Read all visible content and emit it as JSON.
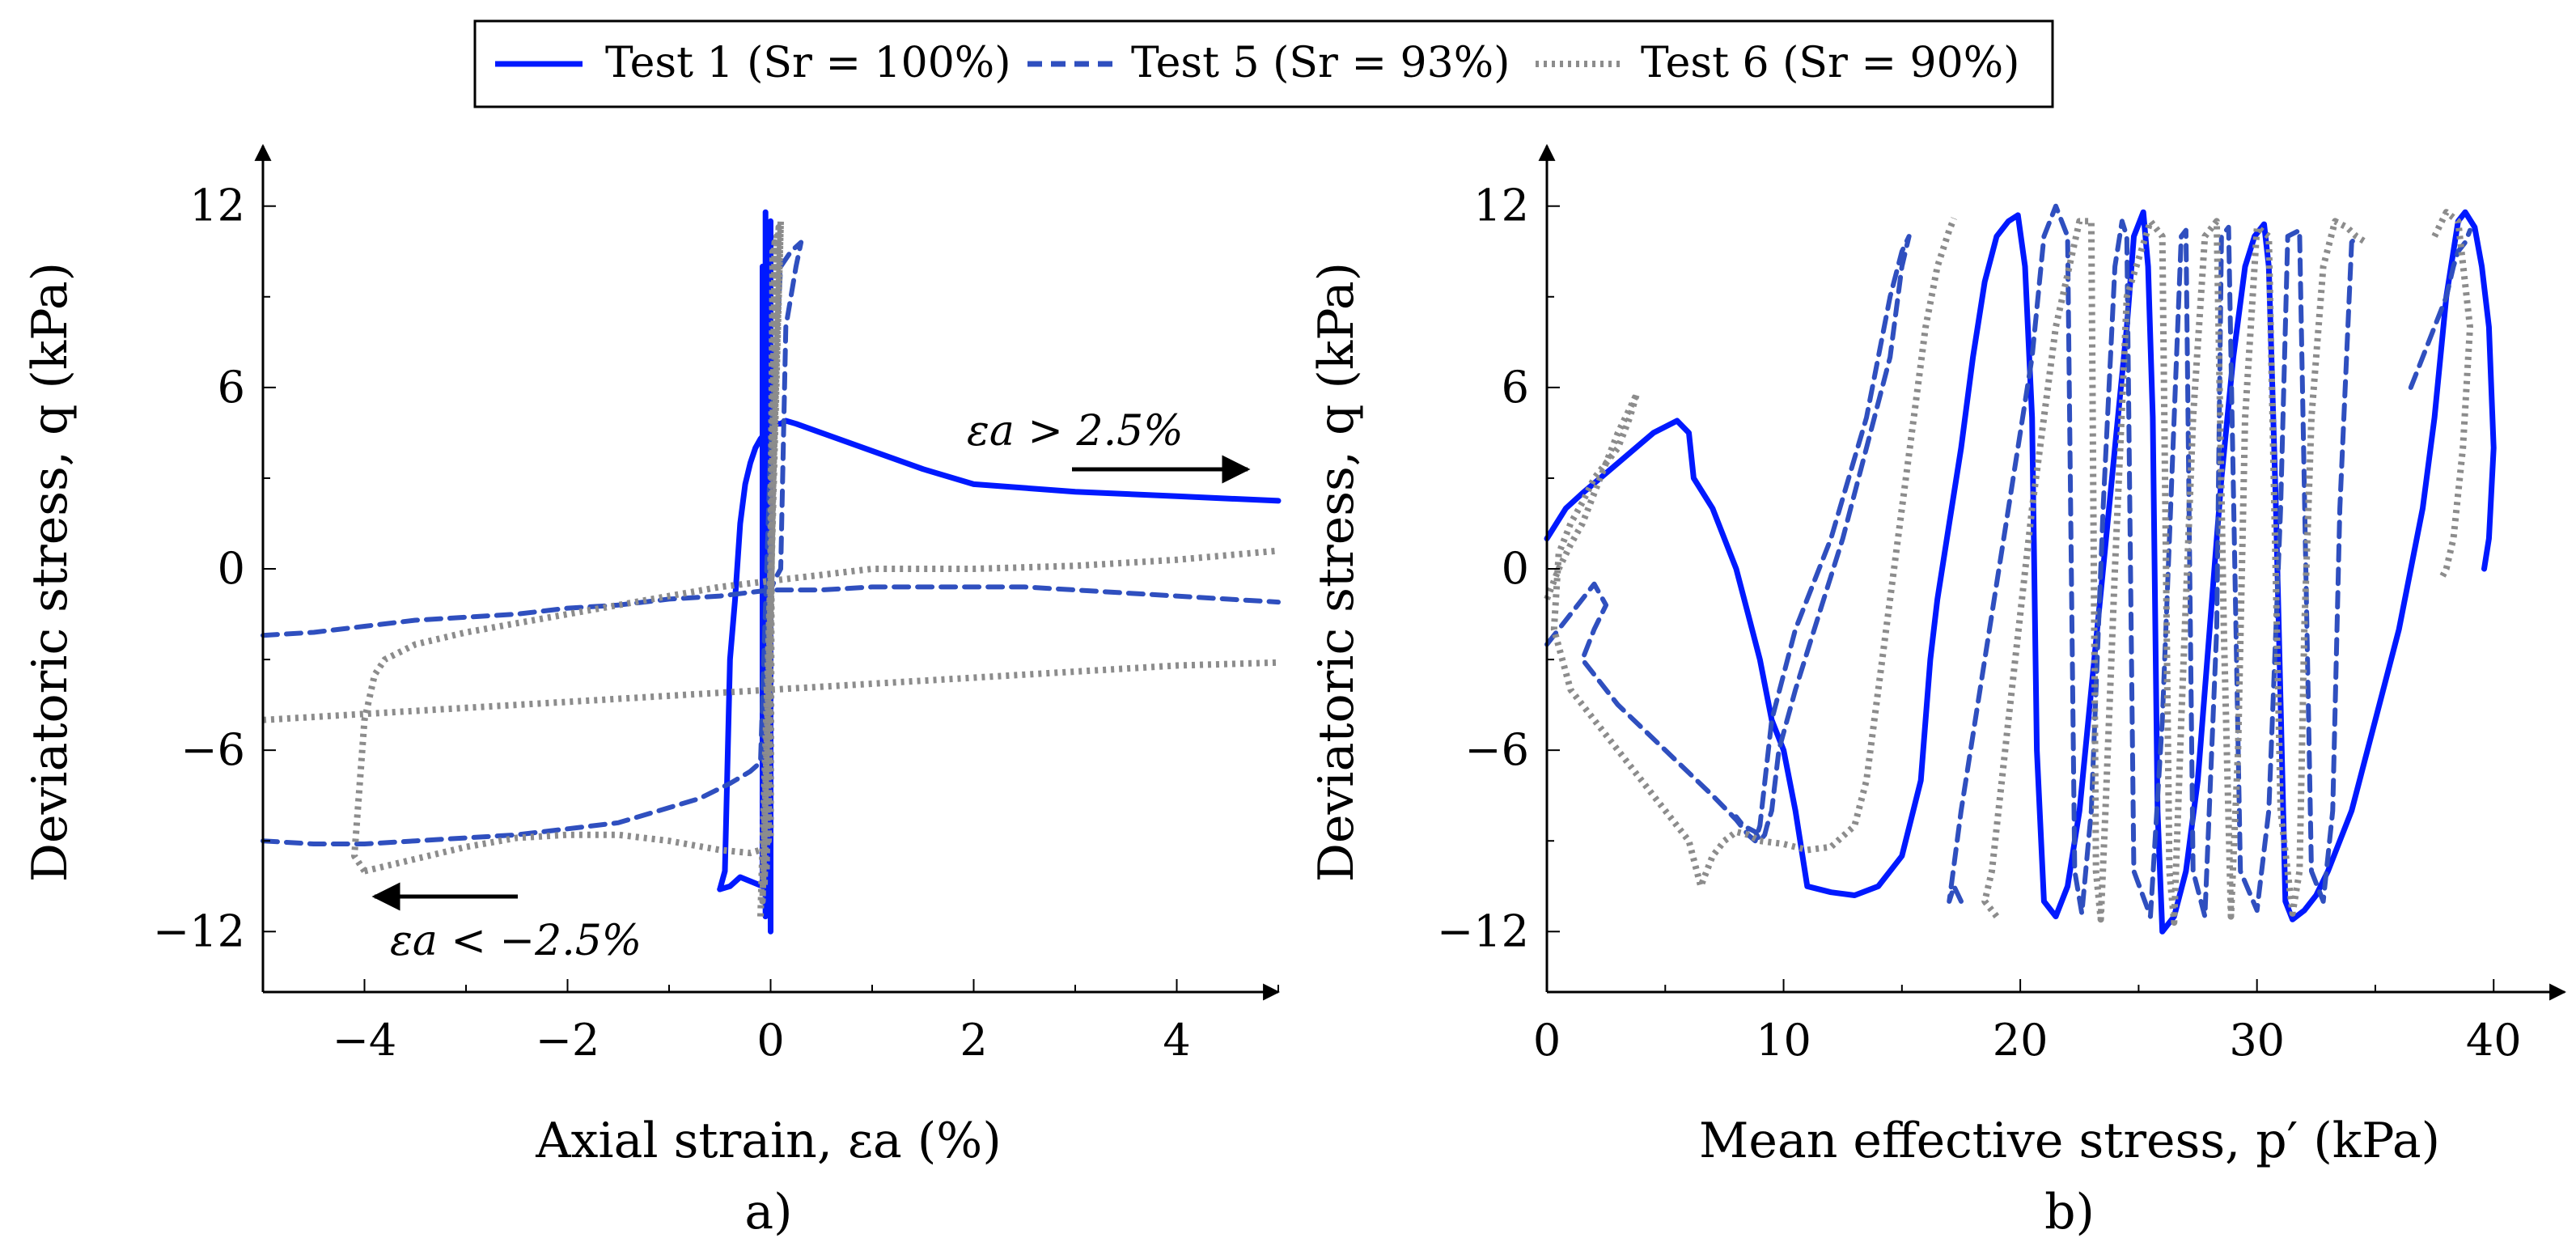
{
  "legend": {
    "entries": [
      {
        "key": "t1",
        "label": "Test 1 (Sr = 100%)",
        "color": "#0019ff",
        "dash": "solid"
      },
      {
        "key": "t5",
        "label": "Test 5 (Sr = 93%)",
        "color": "#2f4fbf",
        "dash": "dashed"
      },
      {
        "key": "t6",
        "label": "Test 6 (Sr = 90%)",
        "color": "#8c8c8c",
        "dash": "dotted"
      }
    ]
  },
  "chart_data": [
    {
      "panel": "a)",
      "type": "line",
      "xlabel": "Axial strain, εa (%)",
      "ylabel": "Deviatoric stress, q (kPa)",
      "xlim": [
        -5,
        5
      ],
      "ylim": [
        -14,
        14
      ],
      "xticks": [
        -4,
        -2,
        0,
        2,
        4
      ],
      "yticks": [
        -12,
        -6,
        0,
        6,
        12
      ],
      "annotations": [
        {
          "text": "εa > 2.5%",
          "arrow": "right"
        },
        {
          "text": "εa < −2.5%",
          "arrow": "left"
        }
      ],
      "series": [
        {
          "key": "t1",
          "x": [
            -0.5,
            -0.45,
            -0.4,
            -0.35,
            -0.3,
            -0.25,
            -0.2,
            -0.15,
            -0.1,
            -0.05,
            0,
            0.05,
            0.1,
            0.15,
            0.25,
            0.5,
            1,
            1.5,
            2,
            3,
            4,
            5
          ],
          "y": [
            -10.6,
            -10,
            -3,
            -1,
            1.5,
            2.8,
            3.5,
            4,
            4.3,
            4.5,
            4.7,
            4.8,
            4.8,
            4.9,
            4.8,
            4.5,
            3.9,
            3.3,
            2.8,
            2.55,
            2.4,
            2.25
          ]
        },
        {
          "key": "t1",
          "x": [
            -0.05,
            -0.05,
            0,
            0,
            -0.02,
            -0.02,
            -0.08,
            -0.08,
            -0.3,
            -0.4,
            -0.5
          ],
          "y": [
            11.8,
            -11.5,
            11.5,
            -12,
            11,
            -11,
            10,
            -10.5,
            -10.2,
            -10.5,
            -10.6
          ]
        },
        {
          "key": "t5",
          "x": [
            -5,
            -4.5,
            -4,
            -3.5,
            -3,
            -2.5,
            -2,
            -1.5,
            -1,
            -0.5,
            0,
            0.5,
            1,
            1.5,
            2,
            2.5,
            3,
            3.5,
            4,
            4.5,
            5
          ],
          "y": [
            -2.2,
            -2.1,
            -1.9,
            -1.7,
            -1.6,
            -1.5,
            -1.3,
            -1.2,
            -1,
            -0.9,
            -0.7,
            -0.7,
            -0.6,
            -0.6,
            -0.6,
            -0.6,
            -0.7,
            -0.8,
            -0.9,
            -1,
            -1.1
          ]
        },
        {
          "key": "t5",
          "x": [
            -5,
            -4.5,
            -4,
            -3.5,
            -3,
            -2.5,
            -2,
            -1.5,
            -1,
            -0.7,
            -0.4,
            -0.2,
            -0.1,
            0,
            0.1,
            0.2,
            0.3,
            0.25,
            0.15,
            0.1,
            0.05,
            0
          ],
          "y": [
            -9,
            -9.1,
            -9.1,
            -9,
            -8.9,
            -8.8,
            -8.6,
            -8.4,
            -7.9,
            -7.6,
            -7.1,
            -6.7,
            -6.4,
            4,
            10,
            10.5,
            10.8,
            10,
            8,
            0,
            -0.3,
            -0.7
          ]
        },
        {
          "key": "t6",
          "x": [
            -5,
            -4,
            -3,
            -2,
            -1,
            0,
            1,
            2,
            3,
            4,
            5
          ],
          "y": [
            -5,
            -4.8,
            -4.6,
            -4.4,
            -4.2,
            -4,
            -3.8,
            -3.6,
            -3.4,
            -3.2,
            -3.1
          ]
        },
        {
          "key": "t6",
          "x": [
            -4,
            -4.1,
            -4,
            -3.9,
            -3.8,
            -3.5,
            -3,
            -2.5,
            -2,
            -1.5,
            -1,
            -0.5,
            0,
            0.5,
            1,
            1.5,
            2,
            3,
            4,
            5
          ],
          "y": [
            -10,
            -9.5,
            -5,
            -3.5,
            -3,
            -2.5,
            -2.1,
            -1.8,
            -1.5,
            -1.2,
            -0.9,
            -0.6,
            -0.4,
            -0.2,
            0,
            0,
            0,
            0.1,
            0.3,
            0.6
          ]
        },
        {
          "key": "t6",
          "x": [
            -4,
            -3.5,
            -3,
            -2.5,
            -2,
            -1.5,
            -1,
            -0.5,
            -0.2,
            0
          ],
          "y": [
            -10,
            -9.6,
            -9.2,
            -8.9,
            -8.8,
            -8.8,
            -9,
            -9.3,
            -9.4,
            -9.2
          ]
        },
        {
          "key": "t6",
          "x": [
            -0.1,
            0.1,
            -0.08,
            0.08,
            -0.06,
            0.06,
            -0.04,
            0.04,
            -0.02,
            0.02,
            0
          ],
          "y": [
            -11.5,
            11.5,
            -11,
            11.3,
            -10.5,
            11,
            -10,
            10.8,
            -9,
            10.5,
            -9
          ]
        }
      ]
    },
    {
      "panel": "b)",
      "type": "line",
      "xlabel": "Mean effective stress, p′ (kPa)",
      "ylabel": "Deviatoric stress, q (kPa)",
      "xlim": [
        0,
        43
      ],
      "ylim": [
        -14,
        14
      ],
      "xticks": [
        0,
        10,
        20,
        30,
        40
      ],
      "yticks": [
        -12,
        -6,
        0,
        6,
        12
      ],
      "series": [
        {
          "key": "t1",
          "x": [
            0,
            0.8,
            1.5,
            3,
            4.5,
            5.5,
            6,
            6.2,
            7,
            8,
            8.5,
            9,
            9.5,
            10,
            10.5,
            11,
            12,
            13,
            14,
            15,
            15.8,
            16.2,
            16.5,
            17,
            17.5,
            18,
            18.5,
            19,
            19.5,
            19.9,
            20.2,
            20.5,
            20.7,
            21,
            21.5,
            22,
            22.5,
            23,
            23.5,
            24,
            24.5,
            24.8,
            25.2,
            25.4,
            25.6,
            25.8,
            26,
            26.5,
            27,
            27.5,
            28,
            28.5,
            29,
            29.5,
            29.9,
            30.3,
            30.5,
            30.8,
            31.2,
            31.5,
            32,
            32.5,
            33,
            34,
            35,
            36,
            37,
            37.5,
            38,
            38.5,
            38.8,
            39.2,
            39.5,
            39.8,
            40,
            39.8,
            39.6
          ],
          "y": [
            1,
            2,
            2.5,
            3.5,
            4.5,
            4.9,
            4.5,
            3,
            2,
            0,
            -1.5,
            -3,
            -5,
            -6,
            -8,
            -10.5,
            -10.7,
            -10.8,
            -10.5,
            -9.5,
            -7,
            -3,
            -1,
            1.5,
            4,
            7,
            9.5,
            11,
            11.5,
            11.7,
            10,
            5,
            -6,
            -11,
            -11.5,
            -10.5,
            -8,
            -4,
            0,
            4,
            8,
            11,
            11.8,
            10,
            5,
            -8,
            -12,
            -11.5,
            -10,
            -7,
            -2,
            3,
            7,
            10,
            11,
            11.4,
            10,
            2,
            -11,
            -11.6,
            -11.3,
            -10.8,
            -10,
            -8,
            -5,
            -2,
            2,
            5,
            9,
            11.5,
            11.8,
            11.3,
            10,
            8,
            4,
            1,
            0
          ]
        },
        {
          "key": "t5",
          "x": [
            0,
            1,
            2,
            2.5,
            2,
            1.5,
            3,
            5,
            7,
            8,
            8.5,
            8.8,
            9,
            9.5,
            10.5,
            12,
            13.5,
            14.5,
            15,
            15.3,
            15,
            14.5,
            13.5,
            12.5,
            11.5,
            10.5,
            9.8,
            9.5,
            9.3,
            9.2,
            9,
            8.8,
            8.3,
            8
          ],
          "y": [
            -2.5,
            -1.5,
            -0.5,
            -1.2,
            -2,
            -3,
            -4.5,
            -6,
            -7.5,
            -8.3,
            -8.8,
            -9,
            -8.5,
            -5,
            -2,
            1,
            5,
            9,
            10.5,
            11,
            10,
            7,
            4,
            1,
            -1.5,
            -4,
            -6,
            -8,
            -8.5,
            -8.8,
            -9,
            -8.7,
            -8.5,
            -8.2
          ]
        },
        {
          "key": "t5",
          "x": [
            17.5,
            17.2,
            17,
            17.5,
            18.5,
            19.5,
            20.5,
            21,
            21.5,
            22,
            22.3,
            22.6,
            23,
            23.5,
            24,
            24.3,
            24.5,
            24.8,
            25.5,
            26,
            26.4,
            26.8,
            27,
            27.3,
            27.8,
            28.3,
            28.5,
            28.8,
            29.3,
            30,
            30.5,
            31,
            31.3,
            31.8,
            32.3,
            32.8,
            33.2,
            33.5,
            34,
            34.2
          ],
          "y": [
            -11,
            -10.5,
            -11,
            -8,
            -3,
            2,
            7,
            11,
            12,
            11,
            -10,
            -11.4,
            -8,
            2,
            10,
            11.5,
            11,
            -10,
            -11.5,
            -5,
            3,
            11,
            11.2,
            -10,
            -11.5,
            -2,
            11,
            11.3,
            -10,
            -11.3,
            -8,
            2,
            11,
            11.2,
            -10,
            -11,
            -8,
            2,
            10.8,
            11
          ]
        },
        {
          "key": "t5",
          "x": [
            36.5,
            37,
            37.5,
            38,
            38.3,
            38.5,
            38.8,
            39
          ],
          "y": [
            6,
            7,
            8,
            9,
            10,
            10.5,
            10.8,
            11.2
          ]
        },
        {
          "key": "t6",
          "x": [
            0,
            0.5,
            1,
            1.5,
            2,
            2.5,
            3,
            3.5,
            3.8,
            3.5,
            3,
            2.5,
            2,
            1.5,
            1,
            0.5,
            0.3,
            1,
            2,
            3,
            4,
            5,
            6,
            6.5,
            7,
            7.5,
            8,
            8.5,
            9,
            10,
            11,
            12,
            13,
            13.5,
            14,
            14.5,
            15,
            15.5,
            16,
            16.5,
            17,
            17.2
          ],
          "y": [
            -1,
            0,
            0.8,
            1.5,
            2.5,
            3.5,
            4.5,
            5.3,
            5.8,
            5,
            4,
            3.5,
            3,
            2.2,
            1.5,
            0.5,
            -2,
            -4,
            -5,
            -6,
            -7,
            -8,
            -9,
            -10.5,
            -9.5,
            -9,
            -8.7,
            -8.8,
            -9,
            -9.1,
            -9.3,
            -9.2,
            -8.5,
            -7,
            -4,
            -1,
            2,
            5,
            8,
            10,
            11.2,
            11.6
          ]
        },
        {
          "key": "t6",
          "x": [
            19,
            18.5,
            18.8,
            19.5,
            20.5,
            21.5,
            22.5,
            23,
            23.2,
            23.4,
            23.6,
            24,
            24.5,
            25.5,
            26,
            26.3,
            26.5,
            26.8,
            27.3,
            27.8,
            28.3,
            28.6,
            28.9,
            29.2,
            29.5,
            30,
            30.5,
            31,
            31.5,
            31.8,
            32,
            32.3,
            32.8,
            33.3,
            33.8,
            34.2,
            34.6
          ],
          "y": [
            -11.5,
            -11,
            -10,
            -5,
            2,
            8,
            11.5,
            11.5,
            -10,
            -11.6,
            -8,
            0,
            9,
            11.5,
            11,
            -10,
            -11.7,
            -5,
            5,
            11,
            11.5,
            -2,
            -11.5,
            -6,
            5,
            11.3,
            11,
            -8,
            -11.4,
            -10,
            -2,
            5,
            10,
            11.5,
            11.3,
            11,
            10.8
          ]
        },
        {
          "key": "t6",
          "x": [
            37.5,
            38,
            38.5,
            39,
            38.7,
            38.3,
            38,
            37.8
          ],
          "y": [
            11,
            11.8,
            11.5,
            8,
            4,
            1,
            0,
            -0.3
          ]
        }
      ]
    }
  ]
}
